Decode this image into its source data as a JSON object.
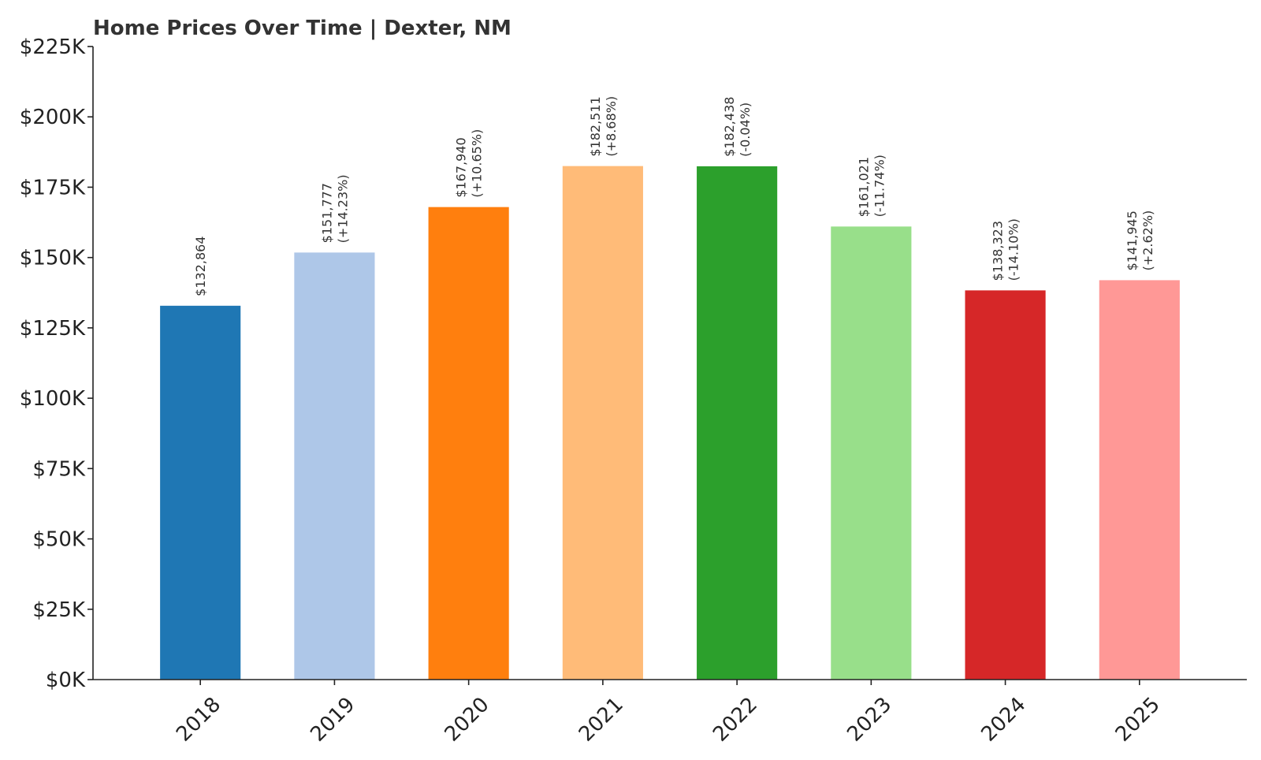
{
  "chart_data": {
    "type": "bar",
    "title": "Home Prices Over Time | Dexter, NM",
    "xlabel": "",
    "ylabel": "",
    "categories": [
      "2018",
      "2019",
      "2020",
      "2021",
      "2022",
      "2023",
      "2024",
      "2025"
    ],
    "values": [
      132864,
      151777,
      167940,
      182511,
      182438,
      161021,
      138323,
      141945
    ],
    "value_labels": [
      "$132,864",
      "$151,777",
      "$167,940",
      "$182,511",
      "$182,438",
      "$161,021",
      "$138,323",
      "$141,945"
    ],
    "change_labels": [
      "",
      "(+14.23%)",
      "(+10.65%)",
      "(+8.68%)",
      "(-0.04%)",
      "(-11.74%)",
      "(-14.10%)",
      "(+2.62%)"
    ],
    "colors": [
      "#1f77b4",
      "#aec7e8",
      "#ff7f0e",
      "#ffbb78",
      "#2ca02c",
      "#98df8a",
      "#d62728",
      "#ff9896"
    ],
    "ylim": [
      0,
      225000
    ],
    "yticks": [
      0,
      25000,
      50000,
      75000,
      100000,
      125000,
      150000,
      175000,
      200000,
      225000
    ],
    "ytick_labels": [
      "$0K",
      "$25K",
      "$50K",
      "$75K",
      "$100K",
      "$125K",
      "$150K",
      "$175K",
      "$200K",
      "$225K"
    ],
    "grid": false,
    "legend": "none"
  }
}
